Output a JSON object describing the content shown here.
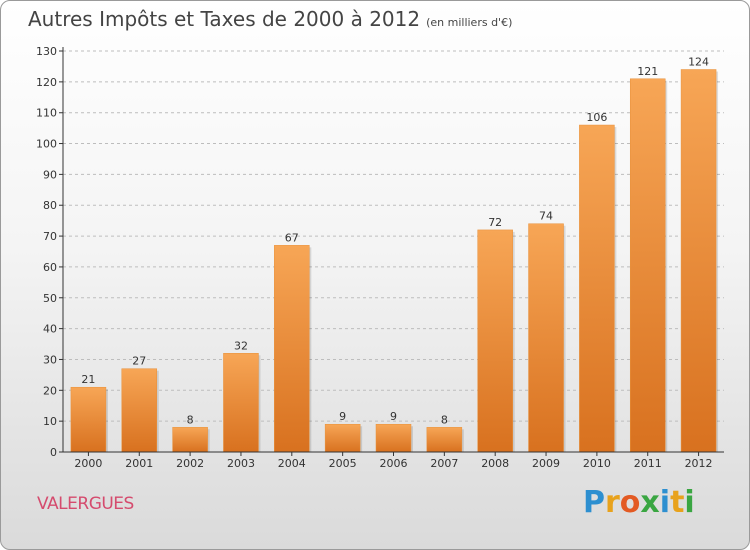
{
  "title": "Autres Impôts et Taxes de 2000 à 2012",
  "unit_label": "(en milliers d'€)",
  "location": "VALERGUES",
  "brand": {
    "letters": [
      "P",
      "r",
      "o",
      "x",
      "i",
      "t",
      "i"
    ],
    "colors": [
      "#2d8fd0",
      "#e8a21c",
      "#e35a23",
      "#3aa642",
      "#2d8fd0",
      "#e8a21c",
      "#3aa642"
    ]
  },
  "colors": {
    "bar_top": "#f7a656",
    "bar_bottom": "#d8711f",
    "axis": "#333333",
    "grid": "#bdbdbd",
    "label": "#333333"
  },
  "chart_data": {
    "type": "bar",
    "title": "Autres Impôts et Taxes de 2000 à 2012",
    "xlabel": "",
    "ylabel": "",
    "categories": [
      "2000",
      "2001",
      "2002",
      "2003",
      "2004",
      "2005",
      "2006",
      "2007",
      "2008",
      "2009",
      "2010",
      "2011",
      "2012"
    ],
    "values": [
      21,
      27,
      8,
      32,
      67,
      9,
      9,
      8,
      72,
      74,
      106,
      121,
      124
    ],
    "ylim": [
      0,
      130
    ],
    "yticks": [
      0,
      10,
      20,
      30,
      40,
      50,
      60,
      70,
      80,
      90,
      100,
      110,
      120,
      130
    ],
    "grid": true,
    "data_labels": true
  }
}
